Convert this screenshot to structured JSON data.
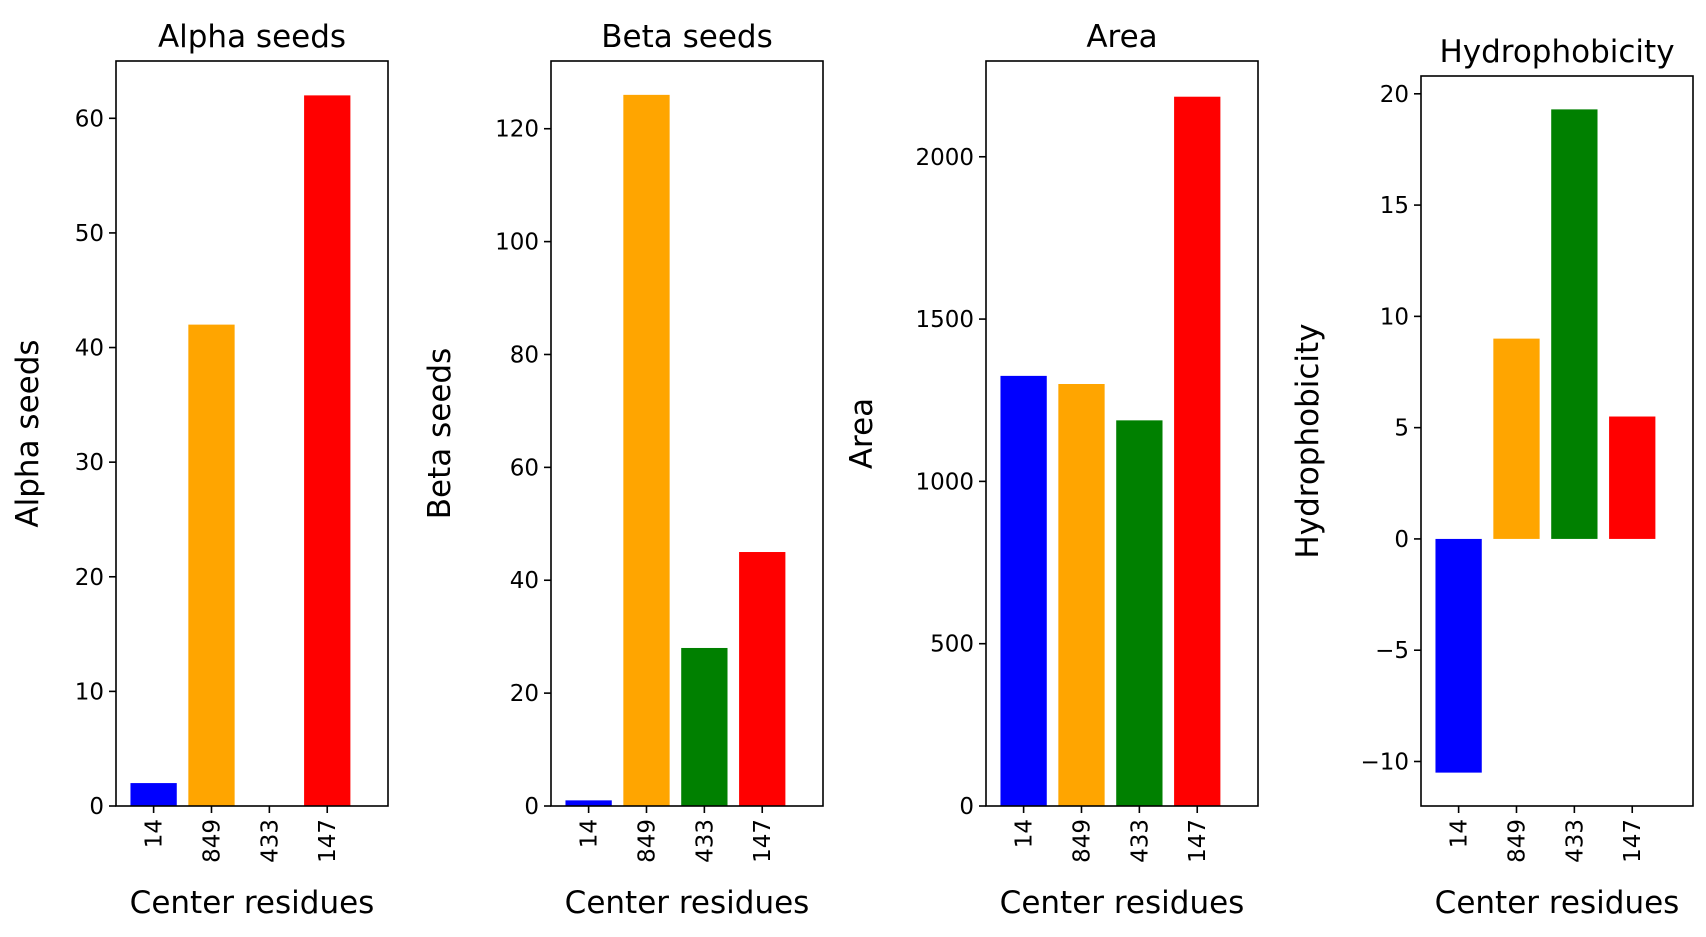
{
  "chart_data": [
    {
      "type": "bar",
      "title": "Alpha seeds",
      "xlabel": "Center residues",
      "ylabel": "Alpha seeds",
      "categories": [
        "14",
        "849",
        "433",
        "147"
      ],
      "values": [
        2,
        42,
        0,
        62
      ],
      "colors": [
        "#0000ff",
        "#ffa500",
        "#008000",
        "#ff0000"
      ],
      "ylim": [
        0,
        65
      ],
      "yticks": [
        0,
        10,
        20,
        30,
        40,
        50,
        60
      ],
      "ytick_labels": [
        "0",
        "10",
        "20",
        "30",
        "40",
        "50",
        "60"
      ]
    },
    {
      "type": "bar",
      "title": "Beta seeds",
      "xlabel": "Center residues",
      "ylabel": "Beta seeds",
      "categories": [
        "14",
        "849",
        "433",
        "147"
      ],
      "values": [
        1,
        126,
        28,
        45
      ],
      "colors": [
        "#0000ff",
        "#ffa500",
        "#008000",
        "#ff0000"
      ],
      "ylim": [
        0,
        132
      ],
      "yticks": [
        0,
        20,
        40,
        60,
        80,
        100,
        120
      ],
      "ytick_labels": [
        "0",
        "20",
        "40",
        "60",
        "80",
        "100",
        "120"
      ]
    },
    {
      "type": "bar",
      "title": "Area",
      "xlabel": "Center residues",
      "ylabel": "Area",
      "categories": [
        "14",
        "849",
        "433",
        "147"
      ],
      "values": [
        1325,
        1300,
        1188,
        2185
      ],
      "colors": [
        "#0000ff",
        "#ffa500",
        "#008000",
        "#ff0000"
      ],
      "ylim": [
        0,
        2295
      ],
      "yticks": [
        0,
        500,
        1000,
        1500,
        2000
      ],
      "ytick_labels": [
        "0",
        "500",
        "1000",
        "1500",
        "2000"
      ]
    },
    {
      "type": "bar",
      "title": "Hydrophobicity",
      "xlabel": "Center residues",
      "ylabel": "Hydrophobicity",
      "categories": [
        "14",
        "849",
        "433",
        "147"
      ],
      "values": [
        -10.5,
        9.0,
        19.3,
        5.5
      ],
      "colors": [
        "#0000ff",
        "#ffa500",
        "#008000",
        "#ff0000"
      ],
      "ylim": [
        -12.0,
        20.8
      ],
      "yticks": [
        -10,
        -5,
        0,
        5,
        10,
        15,
        20
      ],
      "ytick_labels": [
        "−10",
        "−5",
        "0",
        "5",
        "10",
        "15",
        "20"
      ]
    }
  ]
}
